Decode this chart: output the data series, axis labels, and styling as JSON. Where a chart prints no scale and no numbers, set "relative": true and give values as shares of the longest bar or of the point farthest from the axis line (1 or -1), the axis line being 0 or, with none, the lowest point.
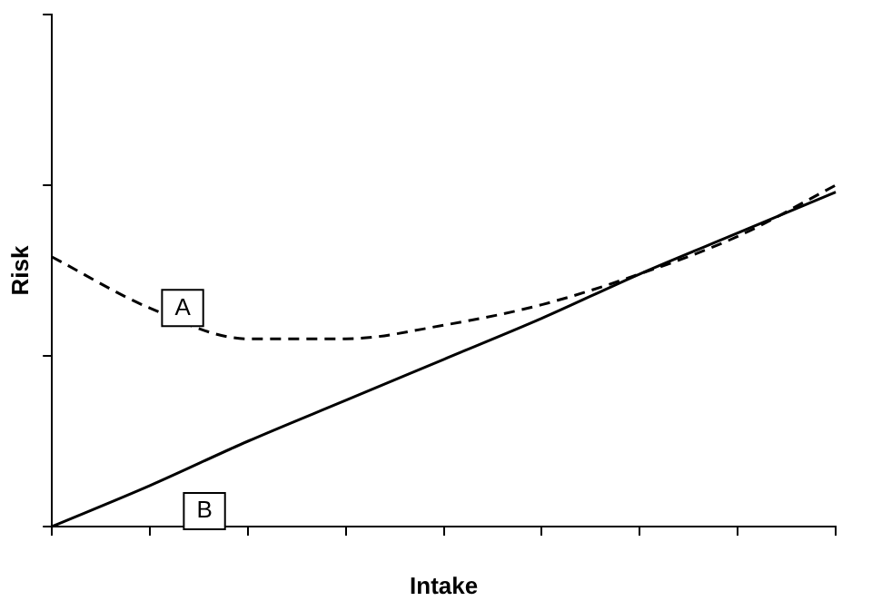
{
  "chart_data": {
    "type": "line",
    "relative": true,
    "xlabel": "Intake",
    "ylabel": "Risk",
    "marker": "none",
    "legend": false,
    "grid": false,
    "categories": [
      null,
      null,
      null,
      null,
      null,
      null,
      null,
      null,
      null
    ],
    "series": [
      {
        "name": "A",
        "color": "#000000",
        "line_style": "dashed",
        "values": [
          0.79,
          0.64,
          0.55,
          0.55,
          0.59,
          0.65,
          0.74,
          0.85,
          1.0
        ]
      },
      {
        "name": "B",
        "color": "#000000",
        "line_style": "solid",
        "values": [
          0,
          0.12,
          0.25,
          0.37,
          0.49,
          0.61,
          0.74,
          0.86,
          0.98
        ]
      }
    ]
  }
}
